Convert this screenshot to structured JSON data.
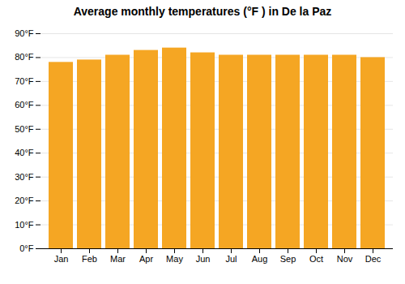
{
  "chart_data": {
    "type": "bar",
    "title": "Average monthly temperatures (°F ) in De la Paz",
    "categories": [
      "Jan",
      "Feb",
      "Mar",
      "Apr",
      "May",
      "Jun",
      "Jul",
      "Aug",
      "Sep",
      "Oct",
      "Nov",
      "Dec"
    ],
    "values": [
      78,
      79,
      81,
      83,
      84,
      82,
      81,
      81,
      81,
      81,
      81,
      80
    ],
    "color": "#F5A623",
    "ylim": [
      0,
      90
    ],
    "yticks": [
      {
        "value": 0,
        "label": "0°F"
      },
      {
        "value": 10,
        "label": "10°F"
      },
      {
        "value": 20,
        "label": "20°F"
      },
      {
        "value": 30,
        "label": "30°F"
      },
      {
        "value": 40,
        "label": "40°F"
      },
      {
        "value": 50,
        "label": "50°F"
      },
      {
        "value": 60,
        "label": "60°F"
      },
      {
        "value": 70,
        "label": "70°F"
      },
      {
        "value": 80,
        "label": "80°F"
      },
      {
        "value": 90,
        "label": "90°F"
      }
    ],
    "grid": true
  }
}
